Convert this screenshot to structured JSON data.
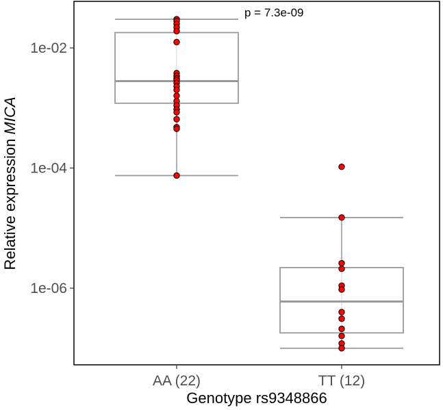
{
  "chart_data": {
    "type": "boxplot",
    "title": "",
    "xlabel": "Genotype rs9348866",
    "ylabel_prefix": "Relative expression ",
    "ylabel_gene": "MICA",
    "y_scale": "log10",
    "ylim": [
      8e-08,
      0.06
    ],
    "y_ticks": [
      1e-06,
      0.0001,
      0.01
    ],
    "y_tick_labels": [
      "1e-06",
      "1e-04",
      "1e-02"
    ],
    "annotation": "p = 7.3e-09",
    "grid": false,
    "legend": "none",
    "point_color": "#ff0000",
    "box_color": "#999999",
    "categories": [
      "AA (22)",
      "TT (12)"
    ],
    "series": [
      {
        "category": "AA (22)",
        "whisker_low": 7.5e-05,
        "q1": 0.0012,
        "median": 0.0028,
        "q3": 0.018,
        "whisker_high": 0.03,
        "points": [
          0.03,
          0.028,
          0.025,
          0.022,
          0.019,
          0.0125,
          0.0038,
          0.0034,
          0.0031,
          0.0029,
          0.0026,
          0.0023,
          0.002,
          0.0016,
          0.0013,
          0.0011,
          0.00095,
          0.00085,
          0.00065,
          0.00048,
          0.00045,
          7.5e-05
        ]
      },
      {
        "category": "TT (12)",
        "whisker_low": 1e-07,
        "q1": 1.8e-07,
        "median": 6e-07,
        "q3": 2.2e-06,
        "whisker_high": 1.5e-05,
        "points": [
          0.000105,
          1.5e-05,
          2.6e-06,
          2.1e-06,
          1.1e-06,
          9.5e-07,
          4e-07,
          3.1e-07,
          2.1e-07,
          1.6e-07,
          1.2e-07,
          1e-07
        ]
      }
    ]
  }
}
